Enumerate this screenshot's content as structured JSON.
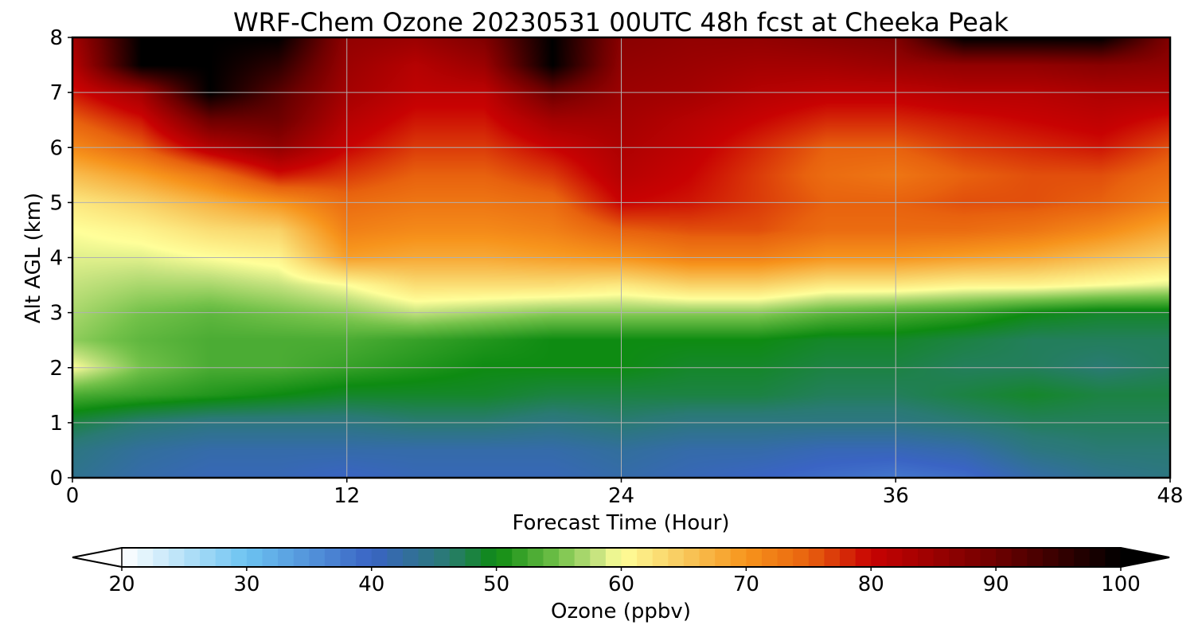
{
  "chart_data": {
    "type": "heatmap",
    "title": "WRF-Chem Ozone  20230531 00UTC 48h fcst at Cheeka Peak",
    "xlabel": "Forecast Time (Hour)",
    "ylabel": "Alt AGL (km)",
    "xlim": [
      0,
      48
    ],
    "ylim": [
      0,
      8
    ],
    "x_ticks": [
      0,
      12,
      24,
      36,
      48
    ],
    "y_ticks": [
      0,
      1,
      2,
      3,
      4,
      5,
      6,
      7,
      8
    ],
    "grid": true,
    "x": [
      0,
      3,
      6,
      9,
      12,
      15,
      18,
      21,
      24,
      27,
      30,
      33,
      36,
      39,
      42,
      45,
      48
    ],
    "y": [
      0,
      0.5,
      1,
      1.5,
      2,
      2.5,
      3,
      3.5,
      4,
      4.5,
      5,
      5.5,
      6,
      6.5,
      7,
      7.5,
      8
    ],
    "z_rows_by_altitude": [
      [
        44,
        42,
        41,
        41,
        40,
        41,
        41,
        41,
        42,
        41,
        40,
        39,
        38,
        39,
        42,
        44,
        45
      ],
      [
        45,
        43,
        42,
        42,
        42,
        42,
        42,
        42,
        43,
        42,
        42,
        41,
        41,
        42,
        45,
        46,
        46
      ],
      [
        48,
        46,
        45,
        45,
        45,
        46,
        46,
        45,
        46,
        45,
        45,
        45,
        45,
        46,
        47,
        47,
        47
      ],
      [
        53,
        52,
        51,
        50,
        49,
        49,
        49,
        48,
        48,
        48,
        48,
        47,
        47,
        48,
        49,
        48,
        48
      ],
      [
        60,
        55,
        53,
        53,
        52,
        51,
        50,
        50,
        50,
        49,
        49,
        48,
        48,
        47,
        47,
        46,
        47
      ],
      [
        56,
        54,
        53,
        53,
        53,
        52,
        51,
        50,
        50,
        50,
        50,
        49,
        49,
        48,
        47,
        47,
        47
      ],
      [
        57,
        55,
        54,
        55,
        56,
        58,
        57,
        56,
        56,
        56,
        56,
        54,
        53,
        52,
        50,
        49,
        49
      ],
      [
        58,
        57,
        57,
        58,
        60,
        63,
        63,
        63,
        62,
        64,
        64,
        62,
        62,
        61,
        61,
        60,
        59
      ],
      [
        59,
        59,
        60,
        61,
        69,
        68,
        68,
        69,
        70,
        72,
        72,
        70,
        70,
        69,
        68,
        66,
        64
      ],
      [
        60,
        61,
        63,
        64,
        72,
        71,
        71,
        72,
        75,
        76,
        76,
        74,
        74,
        74,
        73,
        71,
        68
      ],
      [
        62,
        64,
        67,
        70,
        74,
        73,
        73,
        74,
        80,
        79,
        77,
        75,
        75,
        76,
        76,
        75,
        72
      ],
      [
        66,
        69,
        73,
        79,
        77,
        75,
        75,
        77,
        82,
        80,
        77,
        74,
        73,
        75,
        76,
        76,
        74
      ],
      [
        71,
        75,
        82,
        86,
        80,
        77,
        77,
        80,
        83,
        81,
        78,
        75,
        75,
        77,
        78,
        79,
        76
      ],
      [
        75,
        79,
        90,
        90,
        82,
        79,
        79,
        84,
        84,
        82,
        80,
        78,
        78,
        79,
        80,
        81,
        79
      ],
      [
        79,
        84,
        100,
        92,
        84,
        81,
        81,
        90,
        85,
        84,
        82,
        81,
        81,
        82,
        82,
        83,
        83
      ],
      [
        82,
        100,
        100,
        96,
        85,
        82,
        85,
        100,
        86,
        85,
        84,
        84,
        85,
        86,
        86,
        87,
        86
      ],
      [
        84,
        100,
        100,
        100,
        86,
        85,
        88,
        100,
        87,
        86,
        86,
        87,
        88,
        100,
        100,
        100,
        88
      ]
    ],
    "colorbar": {
      "label": "Ozone  (ppbv)",
      "min": 20,
      "max": 100,
      "ticks": [
        20,
        30,
        40,
        50,
        60,
        70,
        80,
        90,
        100
      ],
      "extend": "both",
      "colors": {
        "20": "#ffffff",
        "30": "#6cc3f1",
        "40": "#3a64c4",
        "46": "#2a7a74",
        "50": "#0e8b12",
        "55": "#74c24a",
        "58": "#c4e27e",
        "60": "#ffff9a",
        "65": "#f8c85c",
        "70": "#f7941c",
        "75": "#e8620e",
        "80": "#c80202",
        "90": "#6e0000",
        "100": "#000000"
      }
    }
  }
}
